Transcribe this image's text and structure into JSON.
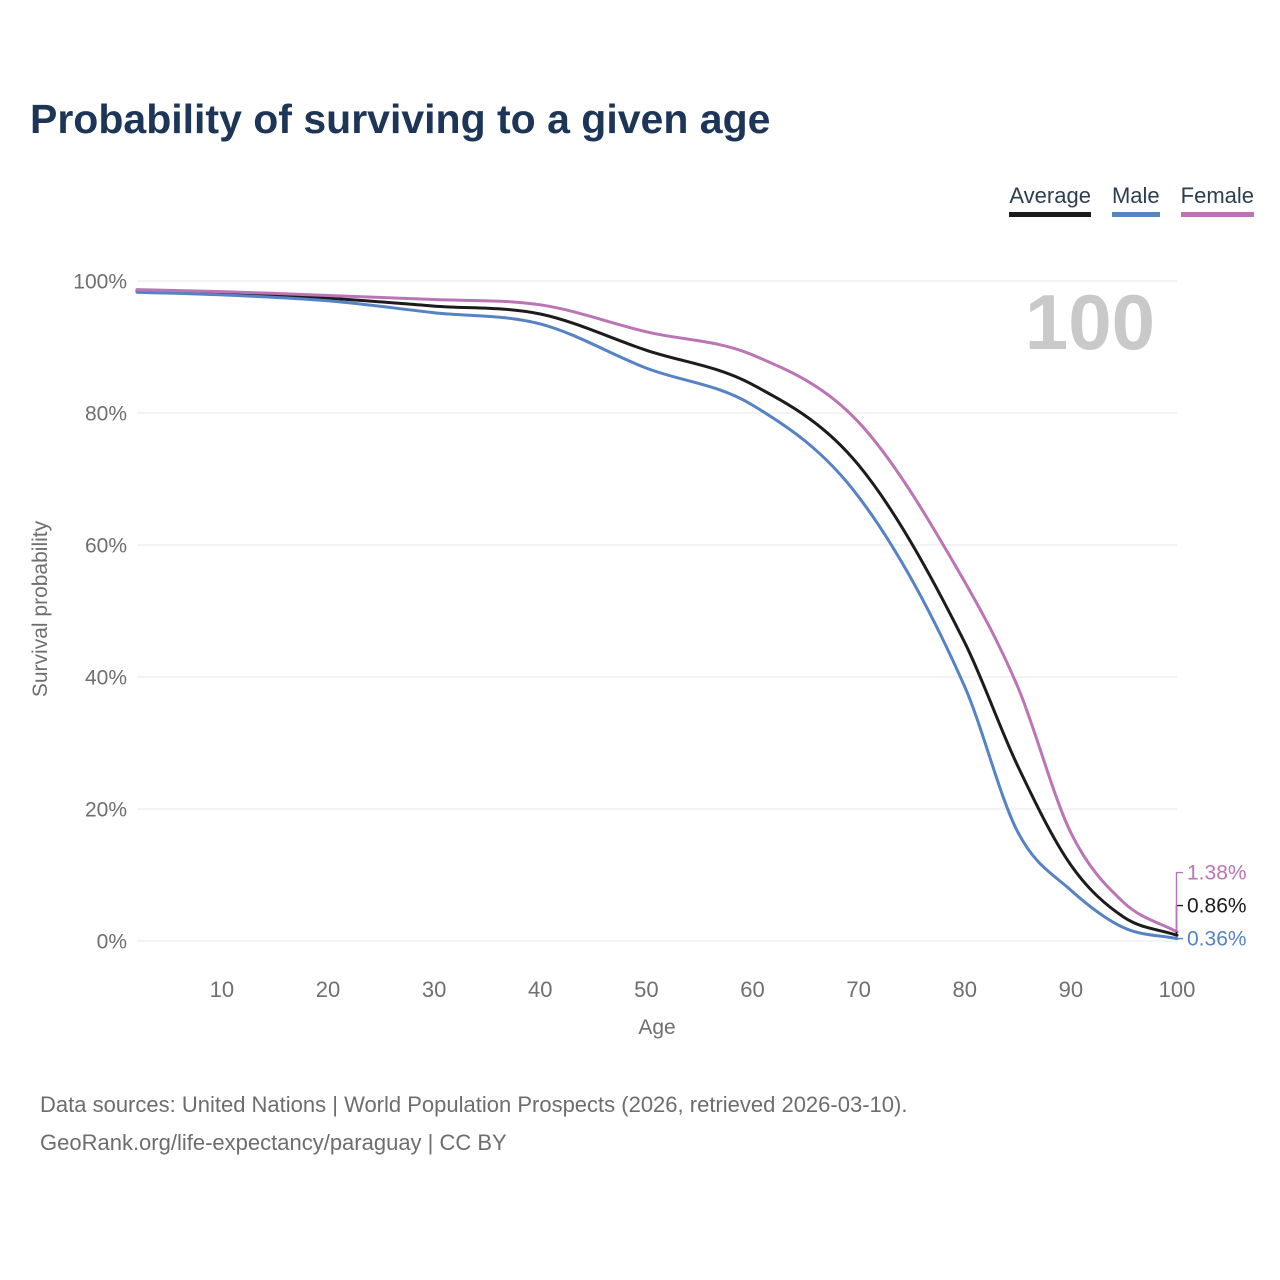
{
  "title": "Probability of surviving to a given age",
  "watermark": "100",
  "legend": {
    "items": [
      {
        "label": "Average",
        "color": "#1c1c1c"
      },
      {
        "label": "Male",
        "color": "#5583c4"
      },
      {
        "label": "Female",
        "color": "#bb74b6"
      }
    ]
  },
  "chart_data": {
    "type": "line",
    "title": "Probability of surviving to a given age",
    "xlabel": "Age",
    "ylabel": "Survival probability",
    "xlim": [
      2,
      100
    ],
    "ylim": [
      0,
      100
    ],
    "x_ticks": [
      10,
      20,
      30,
      40,
      50,
      60,
      70,
      80,
      90,
      100
    ],
    "y_tick_values": [
      0,
      20,
      40,
      60,
      80,
      100
    ],
    "y_tick_labels": [
      "0%",
      "20%",
      "40%",
      "60%",
      "80%",
      "100%"
    ],
    "grid": "horizontal-only",
    "legend_position": "top-right",
    "x": [
      2,
      10,
      20,
      30,
      40,
      50,
      60,
      70,
      80,
      85,
      90,
      95,
      100
    ],
    "series": [
      {
        "name": "Average",
        "color": "#1c1c1c",
        "end_label": "0.86%",
        "values": [
          98.5,
          98.1,
          97.4,
          96.2,
          95.0,
          89.5,
          84.3,
          72.1,
          45.2,
          26.5,
          11.5,
          3.6,
          0.86
        ]
      },
      {
        "name": "Male",
        "color": "#5583c4",
        "end_label": "0.36%",
        "values": [
          98.3,
          97.9,
          97.0,
          95.2,
          93.5,
          86.8,
          81.2,
          67.3,
          38.5,
          16.5,
          7.7,
          2.0,
          0.36
        ]
      },
      {
        "name": "Female",
        "color": "#bb74b6",
        "end_label": "1.38%",
        "values": [
          98.7,
          98.4,
          97.8,
          97.2,
          96.4,
          92.3,
          88.8,
          78.6,
          54.4,
          38.5,
          16.4,
          5.8,
          1.38
        ]
      }
    ]
  },
  "footer": {
    "line1": "Data sources: United Nations | World Population Prospects (2026, retrieved 2026-03-10).",
    "line2": "GeoRank.org/life-expectancy/paraguay | CC BY"
  }
}
